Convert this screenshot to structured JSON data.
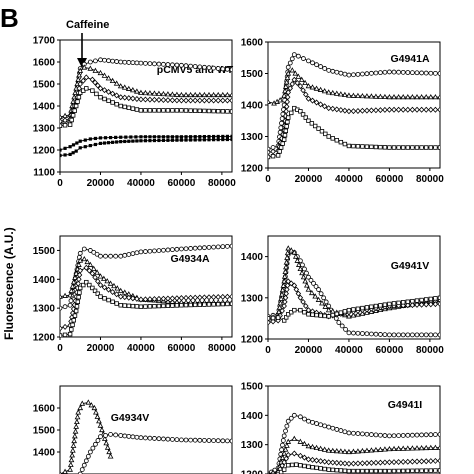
{
  "figure": {
    "panel_letter": "B",
    "ylabel": "Fluorescence (A.U.)",
    "annotation": "Caffeine"
  },
  "chart_data": [
    {
      "type": "line",
      "title": "pCMV5 and WT",
      "xticks": [
        0,
        20000,
        40000,
        60000,
        80000
      ],
      "yticks": [
        1100,
        1200,
        1300,
        1400,
        1500,
        1600,
        1700
      ],
      "xlim": [
        0,
        85000
      ],
      "ylim": [
        1100,
        1700
      ],
      "series": [
        {
          "marker": "circle",
          "x": [
            0,
            5000,
            8000,
            10000,
            12000,
            15000,
            20000,
            30000,
            40000,
            60000,
            85000
          ],
          "y": [
            1320,
            1330,
            1450,
            1570,
            1590,
            1600,
            1610,
            1600,
            1595,
            1585,
            1565
          ]
        },
        {
          "marker": "triangle",
          "x": [
            0,
            5000,
            8000,
            10000,
            12000,
            15000,
            20000,
            30000,
            40000,
            60000,
            85000
          ],
          "y": [
            1350,
            1360,
            1480,
            1560,
            1575,
            1570,
            1550,
            1490,
            1460,
            1450,
            1450
          ]
        },
        {
          "marker": "diamond",
          "x": [
            0,
            5000,
            8000,
            10000,
            13000,
            16000,
            20000,
            30000,
            40000,
            60000,
            85000
          ],
          "y": [
            1330,
            1340,
            1420,
            1500,
            1530,
            1520,
            1480,
            1440,
            1430,
            1425,
            1425
          ]
        },
        {
          "marker": "square",
          "x": [
            0,
            5000,
            8000,
            10000,
            13000,
            16000,
            20000,
            30000,
            40000,
            60000,
            85000
          ],
          "y": [
            1310,
            1315,
            1400,
            1460,
            1480,
            1470,
            1440,
            1400,
            1380,
            1380,
            1375
          ]
        },
        {
          "marker": "filled",
          "x": [
            0,
            5000,
            10000,
            15000,
            20000,
            30000,
            40000,
            60000,
            85000
          ],
          "y": [
            1200,
            1215,
            1240,
            1250,
            1255,
            1258,
            1260,
            1260,
            1262
          ]
        },
        {
          "marker": "filled",
          "x": [
            0,
            5000,
            8000,
            10000,
            15000,
            20000,
            30000,
            40000,
            60000,
            85000
          ],
          "y": [
            1175,
            1180,
            1195,
            1210,
            1220,
            1230,
            1238,
            1242,
            1245,
            1248
          ]
        }
      ]
    },
    {
      "type": "line",
      "title": "G4941A",
      "xticks": [
        0,
        20000,
        40000,
        60000,
        80000
      ],
      "yticks": [
        1200,
        1300,
        1400,
        1500,
        1600
      ],
      "xlim": [
        0,
        85000
      ],
      "ylim": [
        1200,
        1600
      ],
      "series": [
        {
          "marker": "circle",
          "x": [
            0,
            5000,
            8000,
            10000,
            13000,
            15000,
            20000,
            30000,
            40000,
            60000,
            85000
          ],
          "y": [
            1260,
            1270,
            1400,
            1520,
            1560,
            1555,
            1540,
            1510,
            1495,
            1505,
            1500
          ]
        },
        {
          "marker": "triangle",
          "x": [
            0,
            3000,
            6000,
            8000,
            10000,
            12000,
            15000,
            20000,
            30000,
            40000,
            60000,
            85000
          ],
          "y": [
            1410,
            1405,
            1415,
            1430,
            1500,
            1510,
            1490,
            1460,
            1440,
            1430,
            1425,
            1425
          ]
        },
        {
          "marker": "diamond",
          "x": [
            0,
            5000,
            8000,
            10000,
            13000,
            16000,
            20000,
            30000,
            40000,
            60000,
            85000
          ],
          "y": [
            1250,
            1255,
            1320,
            1440,
            1480,
            1460,
            1420,
            1390,
            1380,
            1385,
            1385
          ]
        },
        {
          "marker": "square",
          "x": [
            0,
            5000,
            8000,
            10000,
            13000,
            16000,
            20000,
            30000,
            40000,
            60000,
            85000
          ],
          "y": [
            1235,
            1240,
            1290,
            1360,
            1390,
            1380,
            1350,
            1300,
            1270,
            1265,
            1265
          ]
        }
      ]
    },
    {
      "type": "line",
      "title": "G4934A",
      "xticks": [
        0,
        20000,
        40000,
        60000,
        80000
      ],
      "yticks": [
        1200,
        1300,
        1400,
        1500
      ],
      "xlim": [
        0,
        85000
      ],
      "ylim": [
        1200,
        1550
      ],
      "series": [
        {
          "marker": "circle",
          "x": [
            0,
            5000,
            8000,
            10000,
            12000,
            15000,
            20000,
            30000,
            40000,
            60000,
            85000
          ],
          "y": [
            1300,
            1310,
            1420,
            1490,
            1505,
            1500,
            1480,
            1480,
            1495,
            1505,
            1515
          ]
        },
        {
          "marker": "triangle",
          "x": [
            0,
            5000,
            8000,
            10000,
            12000,
            15000,
            20000,
            30000,
            40000,
            60000,
            85000
          ],
          "y": [
            1340,
            1345,
            1420,
            1465,
            1470,
            1450,
            1410,
            1360,
            1330,
            1320,
            1320
          ]
        },
        {
          "marker": "diamond",
          "x": [
            0,
            5000,
            8000,
            10000,
            13000,
            16000,
            20000,
            30000,
            40000,
            60000,
            85000
          ],
          "y": [
            1230,
            1240,
            1340,
            1430,
            1440,
            1420,
            1380,
            1340,
            1330,
            1335,
            1340
          ]
        },
        {
          "marker": "square",
          "x": [
            0,
            5000,
            8000,
            10000,
            13000,
            16000,
            20000,
            30000,
            40000,
            60000,
            85000
          ],
          "y": [
            1205,
            1210,
            1290,
            1370,
            1390,
            1370,
            1340,
            1310,
            1305,
            1310,
            1315
          ]
        }
      ]
    },
    {
      "type": "line",
      "title": "G4941V",
      "xticks": [
        0,
        20000,
        40000,
        60000,
        80000
      ],
      "yticks": [
        1200,
        1300,
        1400
      ],
      "xlim": [
        0,
        85000
      ],
      "ylim": [
        1200,
        1450
      ],
      "series": [
        {
          "marker": "circle",
          "x": [
            0,
            5000,
            8000,
            10000,
            13000,
            16000,
            20000,
            25000,
            30000,
            35000,
            40000,
            60000,
            85000
          ],
          "y": [
            1255,
            1260,
            1330,
            1405,
            1410,
            1390,
            1350,
            1320,
            1280,
            1240,
            1215,
            1210,
            1210
          ]
        },
        {
          "marker": "triangle",
          "x": [
            0,
            5000,
            8000,
            10000,
            13000,
            16000,
            20000,
            30000,
            40000,
            60000,
            85000
          ],
          "y": [
            1250,
            1255,
            1340,
            1420,
            1410,
            1370,
            1320,
            1270,
            1255,
            1275,
            1295
          ]
        },
        {
          "marker": "diamond",
          "x": [
            0,
            5000,
            8000,
            10000,
            13000,
            16000,
            20000,
            30000,
            40000,
            60000,
            85000
          ],
          "y": [
            1240,
            1245,
            1280,
            1340,
            1330,
            1300,
            1270,
            1255,
            1265,
            1280,
            1285
          ]
        },
        {
          "marker": "square",
          "x": [
            0,
            5000,
            8000,
            10000,
            13000,
            16000,
            20000,
            30000,
            40000,
            60000,
            85000
          ],
          "y": [
            1250,
            1252,
            1245,
            1260,
            1270,
            1270,
            1260,
            1255,
            1270,
            1285,
            1300
          ]
        }
      ]
    },
    {
      "type": "line",
      "title": "G4934V",
      "xticks": [],
      "yticks": [
        1400,
        1500,
        1600
      ],
      "xlim": [
        0,
        85000
      ],
      "ylim": [
        1300,
        1700
      ],
      "series": [
        {
          "marker": "triangle",
          "x": [
            0,
            5000,
            7000,
            9000,
            11000,
            14000,
            17000,
            20000,
            25000
          ],
          "y": [
            1300,
            1320,
            1450,
            1580,
            1620,
            1625,
            1600,
            1520,
            1380
          ]
        },
        {
          "marker": "circle",
          "x": [
            10000,
            15000,
            20000,
            25000,
            30000,
            40000,
            60000,
            85000
          ],
          "y": [
            1300,
            1400,
            1470,
            1480,
            1475,
            1465,
            1455,
            1450
          ]
        }
      ]
    },
    {
      "type": "line",
      "title": "G4941I",
      "xticks": [],
      "yticks": [
        1200,
        1300,
        1400,
        1500
      ],
      "xlim": [
        0,
        85000
      ],
      "ylim": [
        1200,
        1500
      ],
      "series": [
        {
          "marker": "circle",
          "x": [
            0,
            5000,
            8000,
            10000,
            13000,
            16000,
            20000,
            30000,
            40000,
            60000,
            85000
          ],
          "y": [
            1200,
            1220,
            1330,
            1380,
            1400,
            1395,
            1380,
            1360,
            1340,
            1330,
            1335
          ]
        },
        {
          "marker": "triangle",
          "x": [
            0,
            5000,
            8000,
            10000,
            13000,
            16000,
            20000,
            30000,
            40000,
            60000,
            85000
          ],
          "y": [
            1200,
            1210,
            1270,
            1310,
            1320,
            1310,
            1295,
            1280,
            1275,
            1285,
            1290
          ]
        },
        {
          "marker": "diamond",
          "x": [
            0,
            5000,
            8000,
            10000,
            13000,
            16000,
            20000,
            30000,
            40000,
            60000,
            85000
          ],
          "y": [
            1200,
            1205,
            1240,
            1265,
            1270,
            1262,
            1250,
            1240,
            1235,
            1240,
            1245
          ]
        },
        {
          "marker": "square",
          "x": [
            0,
            5000,
            8000,
            10000,
            14000,
            20000,
            30000,
            40000,
            60000,
            85000
          ],
          "y": [
            1195,
            1198,
            1215,
            1230,
            1232,
            1225,
            1215,
            1210,
            1210,
            1212
          ]
        }
      ]
    }
  ]
}
